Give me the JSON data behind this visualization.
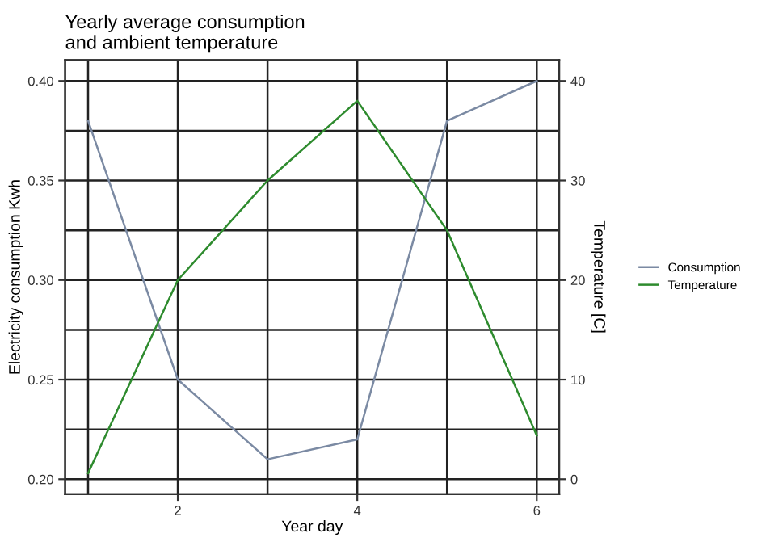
{
  "chart_data": {
    "type": "line",
    "title": "Yearly average consumption\nand ambient temperature",
    "xlabel": "Year day",
    "ylabel": "Electricity consumption Kwh",
    "y2label": "Temperature [C]",
    "x": [
      1,
      2,
      3,
      4,
      5,
      6
    ],
    "series": [
      {
        "name": "Consumption",
        "color": "#7b8aa3",
        "values": [
          0.38,
          0.25,
          0.21,
          0.22,
          0.38,
          0.4
        ]
      },
      {
        "name": "Temperature",
        "color": "#2e8b2e",
        "axis": "y2",
        "values": [
          0.6,
          20,
          30,
          38,
          25,
          4.4
        ]
      }
    ],
    "xlim": [
      0.744,
      6.25
    ],
    "xticks": [
      {
        "value": 1,
        "label": null
      },
      2,
      {
        "value": 3,
        "label": null
      },
      4,
      {
        "value": 5,
        "label": null
      },
      6
    ],
    "ylim": [
      0.1925,
      0.4105
    ],
    "yticks": [
      {
        "value": 0.2,
        "label": "0.20"
      },
      {
        "value": 0.225,
        "label": null
      },
      0.25,
      {
        "value": 0.275,
        "label": null
      },
      {
        "value": 0.3,
        "label": "0.30"
      },
      {
        "value": 0.325,
        "label": null
      },
      0.35,
      {
        "value": 0.375,
        "label": null
      },
      {
        "value": 0.4,
        "label": "0.40"
      }
    ],
    "y2lim": [
      -1.5,
      42.1
    ],
    "y2ticks": [
      0,
      10,
      20,
      30,
      40
    ],
    "grid": true,
    "legend": "right",
    "line_style": "solid",
    "marker": "none"
  }
}
